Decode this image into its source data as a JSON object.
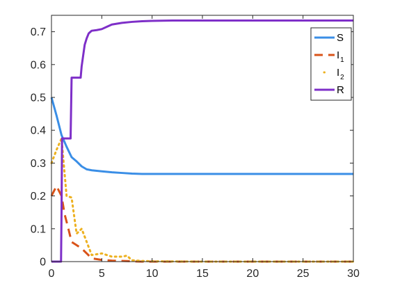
{
  "chart_data": {
    "type": "line",
    "title": "",
    "xlabel": "",
    "ylabel": "",
    "xlim": [
      0,
      30
    ],
    "ylim": [
      0,
      0.75
    ],
    "xticks": [
      0,
      5,
      10,
      15,
      20,
      25,
      30
    ],
    "yticks": [
      0,
      0.1,
      0.2,
      0.3,
      0.4,
      0.5,
      0.6,
      0.7
    ],
    "xtick_labels": [
      "0",
      "5",
      "10",
      "15",
      "20",
      "25",
      "30"
    ],
    "ytick_labels": [
      "0",
      "0.1",
      "0.2",
      "0.3",
      "0.4",
      "0.5",
      "0.6",
      "0.7"
    ],
    "grid": false,
    "legend_position": "top-right",
    "series": [
      {
        "name": "S",
        "name_sub": "",
        "color": "#3a8ee6",
        "style": "solid",
        "x": [
          0,
          0.5,
          1,
          1.5,
          2,
          2.5,
          3,
          3.5,
          4,
          5,
          6,
          7,
          8,
          9,
          10,
          12,
          15,
          20,
          25,
          30
        ],
        "y": [
          0.5,
          0.445,
          0.385,
          0.35,
          0.318,
          0.305,
          0.29,
          0.281,
          0.278,
          0.275,
          0.272,
          0.27,
          0.268,
          0.267,
          0.267,
          0.267,
          0.267,
          0.267,
          0.267,
          0.267
        ]
      },
      {
        "name": "I",
        "name_sub": "1",
        "color": "#d95319",
        "style": "dashed",
        "x": [
          0,
          0.5,
          1,
          1.3,
          1.6,
          2,
          2.5,
          3,
          3.5,
          4,
          5,
          6,
          7,
          8,
          9,
          10,
          15,
          20,
          25,
          30
        ],
        "y": [
          0.2,
          0.23,
          0.2,
          0.145,
          0.11,
          0.06,
          0.05,
          0.04,
          0.025,
          0.01,
          0.005,
          0.003,
          0.002,
          0.001,
          0,
          0,
          0,
          0,
          0,
          0
        ]
      },
      {
        "name": "I",
        "name_sub": "2",
        "color": "#edb120",
        "style": "dotted",
        "x": [
          0,
          0.5,
          1,
          1.5,
          2,
          2.5,
          3,
          3.5,
          4,
          5,
          6,
          7,
          7.5,
          8,
          9,
          10,
          15,
          20,
          25,
          30
        ],
        "y": [
          0.3,
          0.34,
          0.375,
          0.2,
          0.195,
          0.085,
          0.1,
          0.06,
          0.02,
          0.025,
          0.015,
          0.015,
          0.018,
          0.004,
          0.002,
          0.001,
          0,
          0,
          0,
          0
        ]
      },
      {
        "name": "R",
        "name_sub": "",
        "color": "#7e2fc8",
        "style": "solid",
        "x": [
          0,
          0.95,
          1,
          1.05,
          1.9,
          2,
          2.9,
          3,
          3.3,
          3.5,
          3.7,
          4,
          4.5,
          5,
          5.5,
          6,
          7,
          8,
          9,
          10,
          12,
          15,
          20,
          25,
          30
        ],
        "y": [
          0,
          0,
          0.15,
          0.375,
          0.375,
          0.56,
          0.56,
          0.595,
          0.66,
          0.68,
          0.695,
          0.703,
          0.705,
          0.708,
          0.715,
          0.722,
          0.727,
          0.73,
          0.732,
          0.733,
          0.734,
          0.734,
          0.734,
          0.734,
          0.734
        ]
      }
    ]
  }
}
